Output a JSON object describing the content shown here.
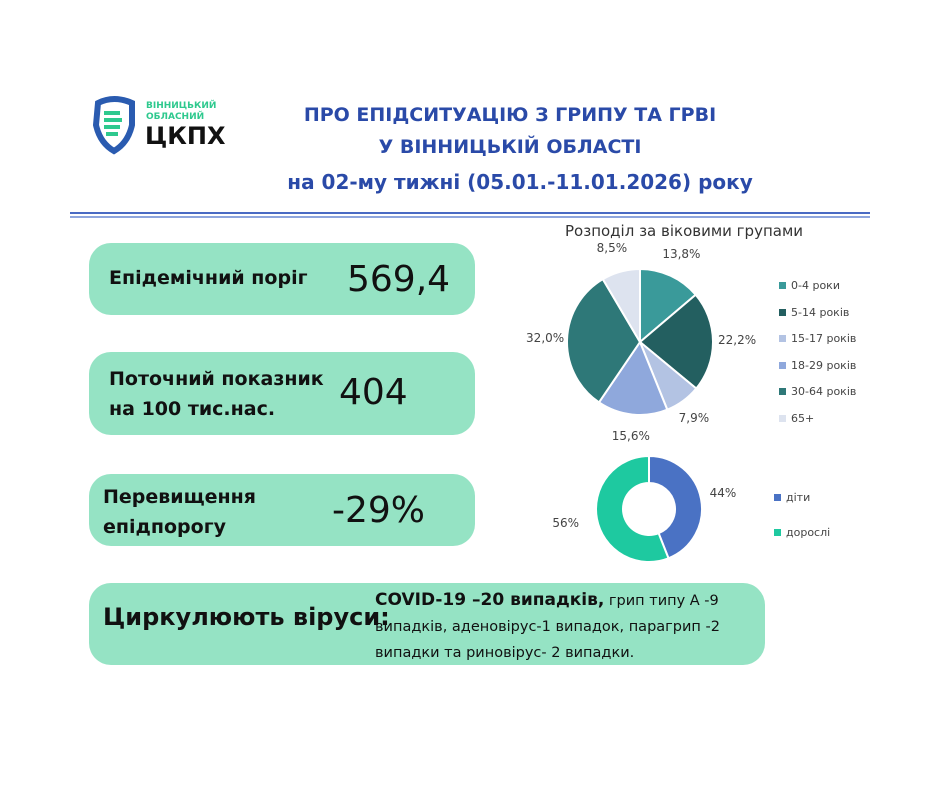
{
  "logo": {
    "line1": "ВІННИЦЬКИЙ",
    "line2": "ОБЛАСНИЙ",
    "name": "ЦКПХ"
  },
  "header": {
    "line1": "ПРО ЕПІДСИТУАЦІЮ З ГРИПУ ТА ГРВІ",
    "line2": "У ВІННИЦЬКІЙ ОБЛАСТІ",
    "line3": "на 02-му тижні (05.01.-11.01.2026) року"
  },
  "cards": [
    {
      "label": "Епідемічний поріг",
      "value": "569,4"
    },
    {
      "label": "Поточний показник на 100 тис.нас.",
      "value": "404"
    },
    {
      "label": "Перевищення епідпорогу",
      "value": "-29%"
    }
  ],
  "viruses": {
    "label": "Циркулюють віруси:",
    "bold": "COVID-19 –20 випадків,",
    "rest": " грип типу А -9 випадків, аденовірус-1 випадок, парагрип -2 випадки та риновірус- 2 випадки."
  },
  "chart_data": [
    {
      "type": "pie",
      "title": "Розподіл за віковими групами",
      "categories": [
        "0-4 роки",
        "5-14 років",
        "15-17 років",
        "18-29 років",
        "30-64 років",
        "65+"
      ],
      "values": [
        13.8,
        22.2,
        7.9,
        15.6,
        32.0,
        8.5
      ],
      "labels": [
        "13,8%",
        "22,2%",
        "7,9%",
        "15,6%",
        "32,0%",
        "8,5%"
      ],
      "colors": [
        "#3a9a9a",
        "#235f60",
        "#b3c3e3",
        "#8fa8dc",
        "#2e7878",
        "#dde3ef"
      ],
      "legend": "right"
    },
    {
      "type": "pie",
      "subtype": "donut",
      "categories": [
        "діти",
        "дорослі"
      ],
      "values": [
        44,
        56
      ],
      "labels": [
        "44%",
        "56%"
      ],
      "colors": [
        "#4a72c4",
        "#1ec9a0"
      ],
      "legend": "right"
    }
  ]
}
